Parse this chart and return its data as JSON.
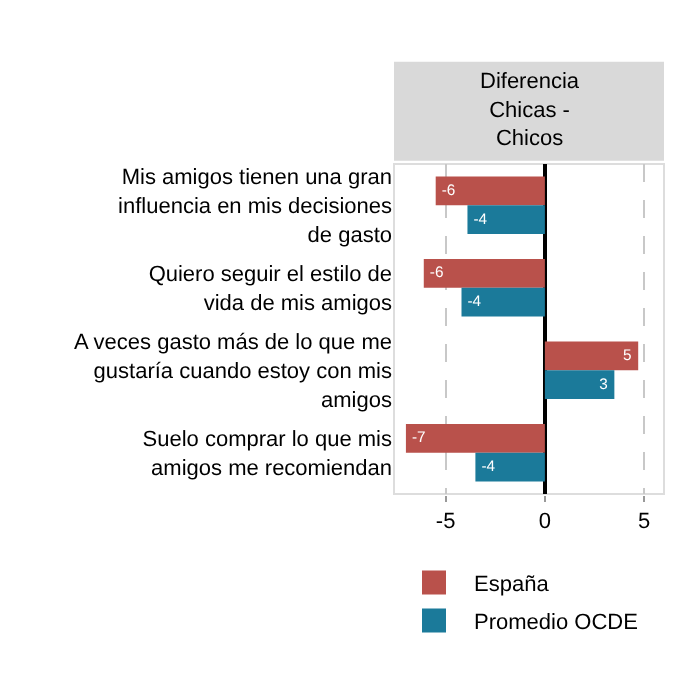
{
  "chart_data": {
    "type": "bar",
    "orientation": "horizontal",
    "title": "Diferencia Chicas - Chicos",
    "categories": [
      "Mis amigos tienen una gran influencia en mis decisiones de gasto",
      "Quiero seguir el estilo de vida de mis amigos",
      "A veces gasto más de lo que me gustaría cuando estoy con mis amigos",
      "Suelo comprar lo que mis amigos me recomiendan"
    ],
    "series": [
      {
        "name": "España",
        "color": "#b9514b",
        "values": [
          -5.5,
          -6.1,
          4.7,
          -7.0
        ],
        "value_labels": [
          "-6",
          "-6",
          "5",
          "-7"
        ]
      },
      {
        "name": "Promedio OCDE",
        "color": "#1b7a9a",
        "values": [
          -3.9,
          -4.2,
          3.5,
          -3.5
        ],
        "value_labels": [
          "-4",
          "-4",
          "3",
          "-4"
        ]
      }
    ],
    "xlim": [
      -7.6,
      6.0
    ],
    "xticks": [
      -5,
      0,
      5
    ],
    "grid": "x",
    "legend": "bottom"
  }
}
